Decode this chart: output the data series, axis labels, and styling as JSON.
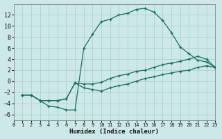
{
  "xlabel": "Humidex (Indice chaleur)",
  "bg_color": "#cce8e8",
  "grid_color": "#aacccc",
  "line_color": "#1a6e60",
  "xlim": [
    0,
    23
  ],
  "ylim": [
    -7,
    14
  ],
  "xticks": [
    0,
    1,
    2,
    3,
    4,
    5,
    6,
    7,
    8,
    9,
    10,
    11,
    12,
    13,
    14,
    15,
    16,
    17,
    18,
    19,
    20,
    21,
    22,
    23
  ],
  "yticks": [
    -6,
    -4,
    -2,
    0,
    2,
    4,
    6,
    8,
    10,
    12
  ],
  "line1_x": [
    1,
    2,
    3,
    4,
    5,
    6,
    7,
    8,
    9,
    10,
    11,
    12,
    13,
    14,
    15,
    16,
    17,
    18,
    19,
    20,
    21,
    22,
    23
  ],
  "line1_y": [
    -2.5,
    -2.5,
    -3.5,
    -4.5,
    -4.7,
    -5.2,
    -5.2,
    6.0,
    8.5,
    10.8,
    11.2,
    12.0,
    12.3,
    13.0,
    13.2,
    12.5,
    11.0,
    8.8,
    6.2,
    5.0,
    3.8,
    3.5,
    2.5
  ],
  "line2_x": [
    1,
    2,
    3,
    4,
    5,
    6,
    7,
    8,
    9,
    10,
    11,
    12,
    13,
    14,
    15,
    16,
    17,
    18,
    19,
    20,
    21,
    22,
    23
  ],
  "line2_y": [
    -2.5,
    -2.5,
    -3.5,
    -3.5,
    -3.5,
    -3.2,
    -0.3,
    -0.5,
    -0.5,
    -0.2,
    0.5,
    1.0,
    1.3,
    1.8,
    2.0,
    2.5,
    3.0,
    3.3,
    3.6,
    4.0,
    4.5,
    4.0,
    2.5
  ],
  "line3_x": [
    1,
    2,
    3,
    4,
    5,
    6,
    7,
    8,
    9,
    10,
    11,
    12,
    13,
    14,
    15,
    16,
    17,
    18,
    19,
    20,
    21,
    22,
    23
  ],
  "line3_y": [
    -2.5,
    -2.5,
    -3.5,
    -3.5,
    -3.5,
    -3.2,
    -0.3,
    -1.2,
    -1.5,
    -1.8,
    -1.2,
    -0.8,
    -0.5,
    -0.0,
    0.5,
    0.8,
    1.2,
    1.5,
    1.8,
    2.0,
    2.5,
    2.8,
    2.5
  ]
}
